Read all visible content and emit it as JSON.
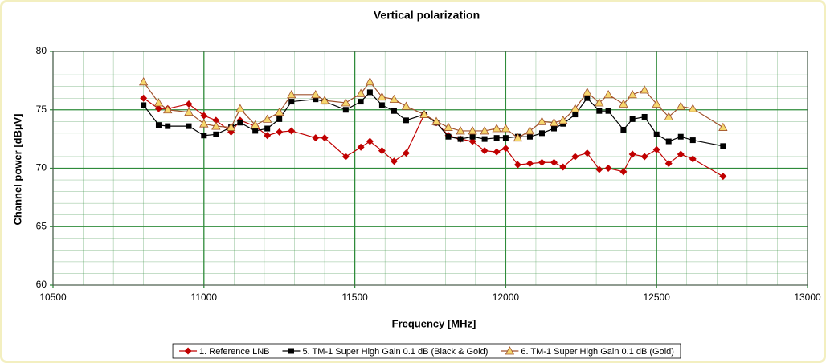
{
  "chart_data": {
    "type": "line",
    "title": "Vertical polarization",
    "xlabel": "Frequency [MHz]",
    "ylabel": "Channel power [dBµV]",
    "x": [
      10800,
      10850,
      10880,
      10950,
      11000,
      11040,
      11090,
      11120,
      11170,
      11210,
      11250,
      11290,
      11370,
      11400,
      11470,
      11520,
      11550,
      11590,
      11630,
      11670,
      11730,
      11770,
      11810,
      11850,
      11890,
      11930,
      11970,
      12000,
      12040,
      12080,
      12120,
      12160,
      12190,
      12230,
      12270,
      12310,
      12340,
      12390,
      12420,
      12460,
      12500,
      12540,
      12580,
      12620,
      12720
    ],
    "series": [
      {
        "name": "1. Reference LNB",
        "color": "#c00000",
        "marker": "diamond",
        "values": [
          76.0,
          75.1,
          75.1,
          75.5,
          74.5,
          74.1,
          73.1,
          74.1,
          73.6,
          72.8,
          73.1,
          73.2,
          72.6,
          72.6,
          71.0,
          71.8,
          72.3,
          71.5,
          70.6,
          71.3,
          74.6,
          73.9,
          72.8,
          72.5,
          72.3,
          71.5,
          71.4,
          71.7,
          70.3,
          70.4,
          70.5,
          70.5,
          70.1,
          71.0,
          71.3,
          69.9,
          70.0,
          69.7,
          71.2,
          71.0,
          71.6,
          70.4,
          71.2,
          70.8,
          69.3
        ]
      },
      {
        "name": "5. TM-1 Super High Gain 0.1 dB (Black & Gold)",
        "color": "#000000",
        "marker": "square",
        "values": [
          75.4,
          73.7,
          73.6,
          73.6,
          72.8,
          72.9,
          73.5,
          73.9,
          73.2,
          73.4,
          74.2,
          75.7,
          75.9,
          75.7,
          75.0,
          75.7,
          76.5,
          75.4,
          74.9,
          74.1,
          74.6,
          73.9,
          72.7,
          72.5,
          72.7,
          72.5,
          72.6,
          72.6,
          72.7,
          72.7,
          73.0,
          73.4,
          73.8,
          74.6,
          76.0,
          74.9,
          74.9,
          73.3,
          74.2,
          74.4,
          72.9,
          72.3,
          72.7,
          72.4,
          71.9
        ]
      },
      {
        "name": "6. TM-1 Super High Gain 0.1 dB (Gold)",
        "color": "#a0522d",
        "marker": "triangle",
        "marker_fill": "#f5d76e",
        "values": [
          77.4,
          75.6,
          75.0,
          74.8,
          73.8,
          73.6,
          73.5,
          75.1,
          73.7,
          74.2,
          74.8,
          76.3,
          76.3,
          75.8,
          75.6,
          76.4,
          77.4,
          76.1,
          75.9,
          75.3,
          74.6,
          74.0,
          73.5,
          73.2,
          73.2,
          73.2,
          73.4,
          73.4,
          72.6,
          73.2,
          74.0,
          73.9,
          74.1,
          75.1,
          76.5,
          75.6,
          76.3,
          75.5,
          76.3,
          76.7,
          75.5,
          74.4,
          75.3,
          75.1,
          73.5
        ]
      }
    ],
    "xlim": [
      10500,
      13000
    ],
    "xticks": [
      10500,
      11000,
      11500,
      12000,
      12500,
      13000
    ],
    "ylim": [
      60,
      80
    ],
    "yticks": [
      60,
      65,
      70,
      75,
      80
    ],
    "grid": true,
    "minor_step": {
      "x": 100,
      "y": 1
    },
    "grid_color": "#2e8b3a",
    "legend": "bottom"
  }
}
